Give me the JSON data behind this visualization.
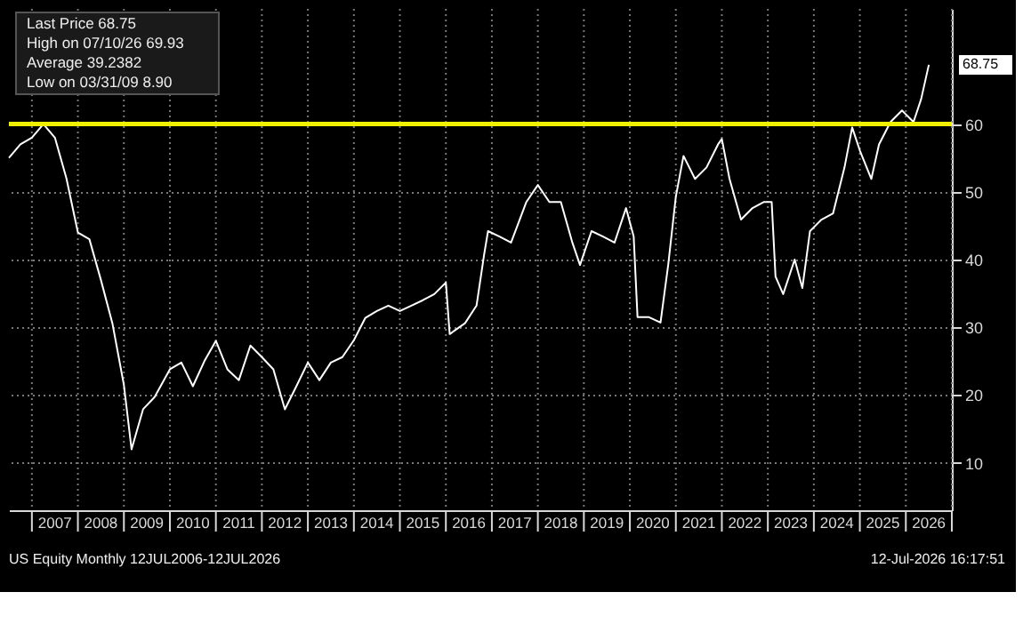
{
  "chart_data": {
    "type": "line",
    "x": [
      "2006-07",
      "2006-10",
      "2007-01",
      "2007-04",
      "2007-07",
      "2007-10",
      "2008-01",
      "2008-04",
      "2008-07",
      "2008-10",
      "2009-01",
      "2009-03",
      "2009-06",
      "2009-09",
      "2010-01",
      "2010-04",
      "2010-07",
      "2010-10",
      "2011-01",
      "2011-04",
      "2011-07",
      "2011-10",
      "2012-01",
      "2012-04",
      "2012-07",
      "2012-10",
      "2013-01",
      "2013-04",
      "2013-07",
      "2013-10",
      "2014-01",
      "2014-04",
      "2014-07",
      "2014-10",
      "2015-01",
      "2015-04",
      "2015-07",
      "2015-10",
      "2016-01",
      "2016-02",
      "2016-06",
      "2016-09",
      "2016-11",
      "2016-12",
      "2017-03",
      "2017-06",
      "2017-10",
      "2018-01",
      "2018-04",
      "2018-07",
      "2018-10",
      "2018-12",
      "2019-03",
      "2019-06",
      "2019-09",
      "2019-12",
      "2020-02",
      "2020-03",
      "2020-06",
      "2020-09",
      "2020-11",
      "2021-01",
      "2021-03",
      "2021-06",
      "2021-09",
      "2021-12",
      "2022-01",
      "2022-03",
      "2022-06",
      "2022-09",
      "2022-12",
      "2023-02",
      "2023-03",
      "2023-05",
      "2023-08",
      "2023-10",
      "2023-12",
      "2024-03",
      "2024-06",
      "2024-09",
      "2024-11",
      "2025-01",
      "2025-04",
      "2025-06",
      "2025-09",
      "2025-12",
      "2026-03",
      "2026-05",
      "2026-07"
    ],
    "series": [
      {
        "color": "#ffffff",
        "values": [
          55,
          57,
          58,
          60,
          58,
          52,
          44,
          43,
          37,
          30.6,
          21.5,
          12,
          17.9,
          19.7,
          23.8,
          24.8,
          21.3,
          25,
          28,
          23.8,
          22.2,
          27.3,
          25.6,
          23.8,
          17.9,
          21.3,
          24.8,
          22.2,
          24.8,
          25.6,
          28.1,
          31.4,
          32.4,
          33.2,
          32.4,
          33.2,
          34,
          34.9,
          36.6,
          29,
          30.6,
          33.2,
          40.8,
          44.2,
          43.4,
          42.5,
          48.5,
          51,
          48.5,
          48.5,
          42.5,
          39.2,
          44.2,
          43.4,
          42.5,
          47.6,
          43.4,
          31.5,
          31.5,
          30.7,
          39.2,
          49.3,
          55.3,
          51.9,
          53.6,
          57,
          57.8,
          51.9,
          45.9,
          47.6,
          48.5,
          48.5,
          37.5,
          34.9,
          40,
          35.8,
          44.2,
          45.9,
          46.8,
          53.6,
          59.5,
          56.1,
          51.9,
          57,
          60.3,
          62,
          60.3,
          63.7,
          68.75
        ]
      }
    ],
    "xlim": [
      "2006-07",
      "2027-01"
    ],
    "xticks": [
      {
        "value": "2007-01",
        "label": null
      },
      {
        "value": "2008-01",
        "label": null
      },
      {
        "value": "2009-01",
        "label": null
      },
      {
        "value": "2010-01",
        "label": null
      },
      {
        "value": "2011-01",
        "label": null
      },
      {
        "value": "2012-01",
        "label": null
      },
      {
        "value": "2013-01",
        "label": null
      },
      {
        "value": "2014-01",
        "label": null
      },
      {
        "value": "2015-01",
        "label": null
      },
      {
        "value": "2016-01",
        "label": null
      },
      {
        "value": "2017-01",
        "label": null
      },
      {
        "value": "2018-01",
        "label": null
      },
      {
        "value": "2019-01",
        "label": null
      },
      {
        "value": "2020-01",
        "label": null
      },
      {
        "value": "2021-01",
        "label": null
      },
      {
        "value": "2022-01",
        "label": null
      },
      {
        "value": "2023-01",
        "label": null
      },
      {
        "value": "2024-01",
        "label": null
      },
      {
        "value": "2025-01",
        "label": null
      },
      {
        "value": "2026-01",
        "label": null
      },
      {
        "value": "2027-01",
        "label": null
      },
      {
        "value": "2007-07",
        "label": "2007"
      },
      {
        "value": "2008-07",
        "label": "2008"
      },
      {
        "value": "2009-07",
        "label": "2009"
      },
      {
        "value": "2010-07",
        "label": "2010"
      },
      {
        "value": "2011-07",
        "label": "2011"
      },
      {
        "value": "2012-07",
        "label": "2012"
      },
      {
        "value": "2013-07",
        "label": "2013"
      },
      {
        "value": "2014-07",
        "label": "2014"
      },
      {
        "value": "2015-07",
        "label": "2015"
      },
      {
        "value": "2016-07",
        "label": "2016"
      },
      {
        "value": "2017-07",
        "label": "2017"
      },
      {
        "value": "2018-07",
        "label": "2018"
      },
      {
        "value": "2019-07",
        "label": "2019"
      },
      {
        "value": "2020-07",
        "label": "2020"
      },
      {
        "value": "2021-07",
        "label": "2021"
      },
      {
        "value": "2022-07",
        "label": "2022"
      },
      {
        "value": "2023-07",
        "label": "2023"
      },
      {
        "value": "2024-07",
        "label": "2024"
      },
      {
        "value": "2025-07",
        "label": "2025"
      },
      {
        "value": "2026-07",
        "label": "2026"
      }
    ],
    "ylim": [
      3,
      77
    ],
    "yticks": [
      10,
      20,
      30,
      40,
      50,
      60
    ],
    "ref_lines": [
      {
        "axis": "y",
        "value": 60,
        "color": "#f0f000",
        "line_style": "solid"
      }
    ],
    "annotations": [
      "Last Price 68.75",
      "High on 07/10/26 69.93",
      "Average 39.2382",
      "Low on 03/31/09 8.90",
      {
        "text": "68.75",
        "x": "2026-07",
        "y": 68.75
      },
      "US Equity Monthly 12JUL2006-12JUL2026",
      "12-Jul-2026 16:17:51"
    ],
    "grid": true,
    "legend": false,
    "marker": "none",
    "line_style": "solid"
  }
}
